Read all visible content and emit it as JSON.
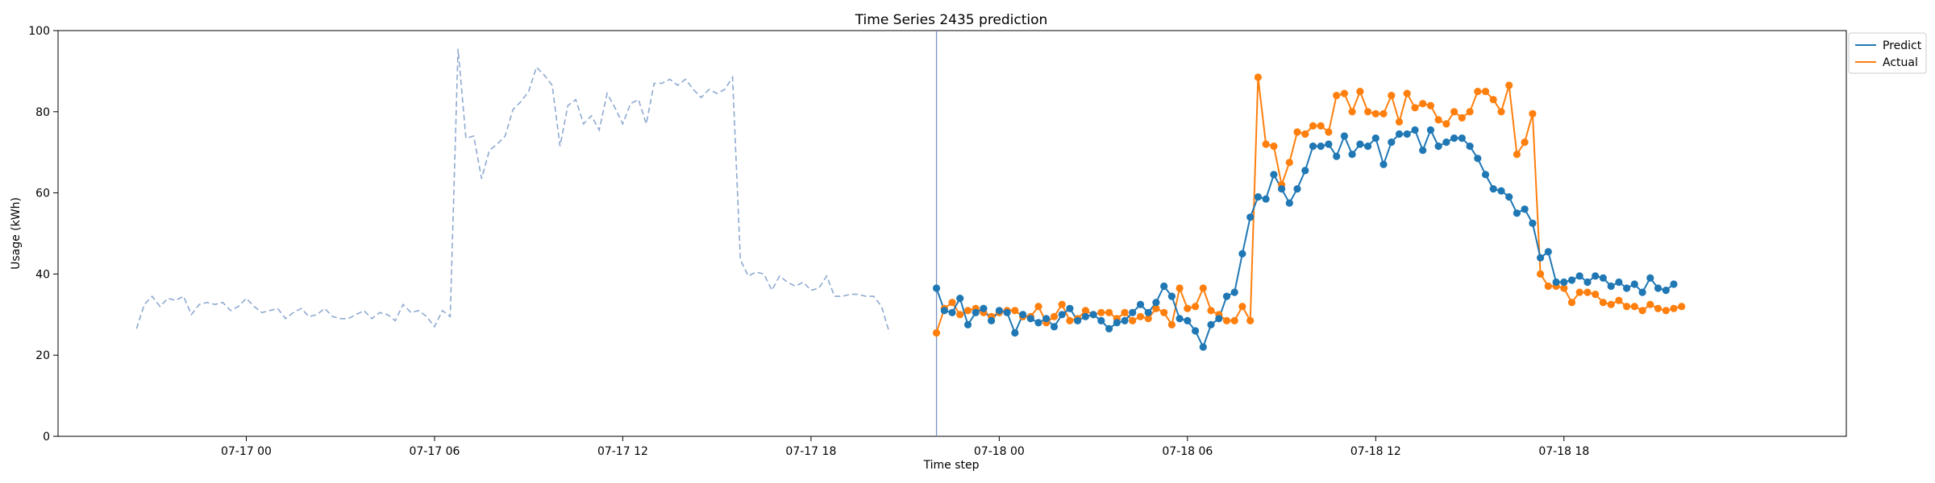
{
  "chart_data": {
    "type": "line",
    "title": "Time Series 2435 prediction",
    "xlabel": "Time step",
    "ylabel": "Usage (kWh)",
    "ylim": [
      0,
      100
    ],
    "yticks": [
      0,
      20,
      40,
      60,
      80,
      100
    ],
    "xaxis_start": "07-16 18:00",
    "xaxis_end": "07-19 03:00",
    "xticks": [
      {
        "label": "07-17 00",
        "t": "07-17 00:00"
      },
      {
        "label": "07-17 06",
        "t": "07-17 06:00"
      },
      {
        "label": "07-17 12",
        "t": "07-17 12:00"
      },
      {
        "label": "07-17 18",
        "t": "07-17 18:00"
      },
      {
        "label": "07-18 00",
        "t": "07-18 00:00"
      },
      {
        "label": "07-18 06",
        "t": "07-18 06:00"
      },
      {
        "label": "07-18 12",
        "t": "07-18 12:00"
      },
      {
        "label": "07-18 18",
        "t": "07-18 18:00"
      }
    ],
    "grid": false,
    "legend_position": "top-right",
    "split_time": "07-17 22:00",
    "colors": {
      "history": "#8fa9d1",
      "predict": "#1f77b4",
      "actual": "#ff7f0e",
      "split": "#7a90c4"
    },
    "history": {
      "start": "07-16 20:30",
      "step_minutes": 15,
      "values": [
        26.5,
        32.5,
        34.5,
        32.0,
        34.0,
        33.5,
        34.5,
        30.0,
        32.5,
        33.0,
        32.5,
        33.0,
        31.0,
        32.0,
        34.0,
        32.0,
        30.5,
        31.0,
        31.5,
        29.0,
        30.5,
        31.5,
        29.5,
        30.0,
        31.5,
        29.5,
        29.0,
        29.0,
        30.0,
        31.0,
        29.0,
        30.5,
        30.0,
        28.5,
        32.5,
        30.5,
        31.0,
        29.5,
        27.0,
        31.0,
        29.5,
        95.5,
        73.5,
        74.0,
        63.5,
        70.5,
        72.0,
        74.0,
        80.5,
        82.5,
        85.0,
        91.0,
        89.0,
        86.5,
        71.5,
        81.5,
        83.0,
        77.0,
        79.0,
        75.5,
        84.5,
        81.0,
        77.0,
        82.0,
        83.0,
        77.0,
        87.0,
        87.0,
        88.0,
        86.5,
        88.0,
        85.5,
        83.5,
        85.5,
        84.5,
        85.5,
        88.5,
        43.5,
        39.5,
        40.5,
        40.0,
        36.0,
        39.5,
        38.0,
        37.0,
        38.0,
        36.0,
        36.5,
        39.5,
        34.5,
        34.5,
        35.0,
        35.0,
        34.5,
        34.5,
        32.0,
        25.5
      ]
    },
    "series": [
      {
        "name": "Predict",
        "start": "07-17 22:00",
        "step_minutes": 15,
        "values": [
          36.5,
          31.0,
          30.5,
          34.0,
          27.5,
          30.5,
          31.5,
          28.5,
          31.0,
          30.5,
          25.5,
          30.0,
          29.0,
          28.0,
          29.0,
          27.0,
          30.0,
          31.5,
          28.5,
          29.5,
          30.0,
          28.5,
          26.5,
          28.0,
          28.5,
          30.5,
          32.5,
          30.5,
          33.0,
          37.0,
          34.5,
          29.0,
          28.5,
          26.0,
          22.0,
          27.5,
          29.0,
          34.5,
          35.5,
          45.0,
          54.0,
          59.0,
          58.5,
          64.5,
          61.0,
          57.5,
          61.0,
          65.5,
          71.5,
          71.5,
          72.0,
          69.0,
          74.0,
          69.5,
          72.0,
          71.5,
          73.5,
          67.0,
          72.5,
          74.5,
          74.5,
          75.5,
          70.5,
          75.5,
          71.5,
          72.5,
          73.5,
          73.5,
          71.5,
          68.5,
          64.5,
          61.0,
          60.5,
          59.0,
          55.0,
          56.0,
          52.5,
          44.0,
          45.5,
          38.0,
          38.0,
          38.5,
          39.5,
          38.0,
          39.5,
          39.0,
          37.0,
          38.0,
          36.5,
          37.5,
          35.5,
          39.0,
          36.5,
          36.0,
          37.5
        ]
      },
      {
        "name": "Actual",
        "start": "07-17 22:00",
        "step_minutes": 15,
        "values": [
          25.5,
          31.5,
          33.0,
          30.0,
          31.0,
          31.5,
          30.5,
          29.5,
          30.5,
          31.0,
          31.0,
          29.5,
          29.5,
          32.0,
          28.0,
          29.5,
          32.5,
          28.5,
          29.0,
          31.0,
          30.0,
          30.5,
          30.5,
          29.0,
          30.5,
          28.5,
          29.5,
          29.0,
          31.5,
          30.5,
          27.5,
          36.5,
          31.5,
          32.0,
          36.5,
          31.0,
          30.0,
          28.5,
          28.5,
          32.0,
          28.5,
          88.5,
          72.0,
          71.5,
          62.0,
          67.5,
          75.0,
          74.5,
          76.5,
          76.5,
          75.0,
          84.0,
          84.5,
          80.0,
          85.0,
          80.0,
          79.5,
          79.5,
          84.0,
          77.5,
          84.5,
          81.0,
          82.0,
          81.5,
          78.0,
          77.0,
          80.0,
          78.5,
          80.0,
          85.0,
          85.0,
          83.0,
          80.0,
          86.5,
          69.5,
          72.5,
          79.5,
          40.0,
          37.0,
          37.0,
          36.5,
          33.0,
          35.5,
          35.5,
          35.0,
          33.0,
          32.5,
          33.5,
          32.0,
          32.0,
          31.0,
          32.5,
          31.5,
          31.0,
          31.5,
          32.0
        ]
      }
    ]
  }
}
